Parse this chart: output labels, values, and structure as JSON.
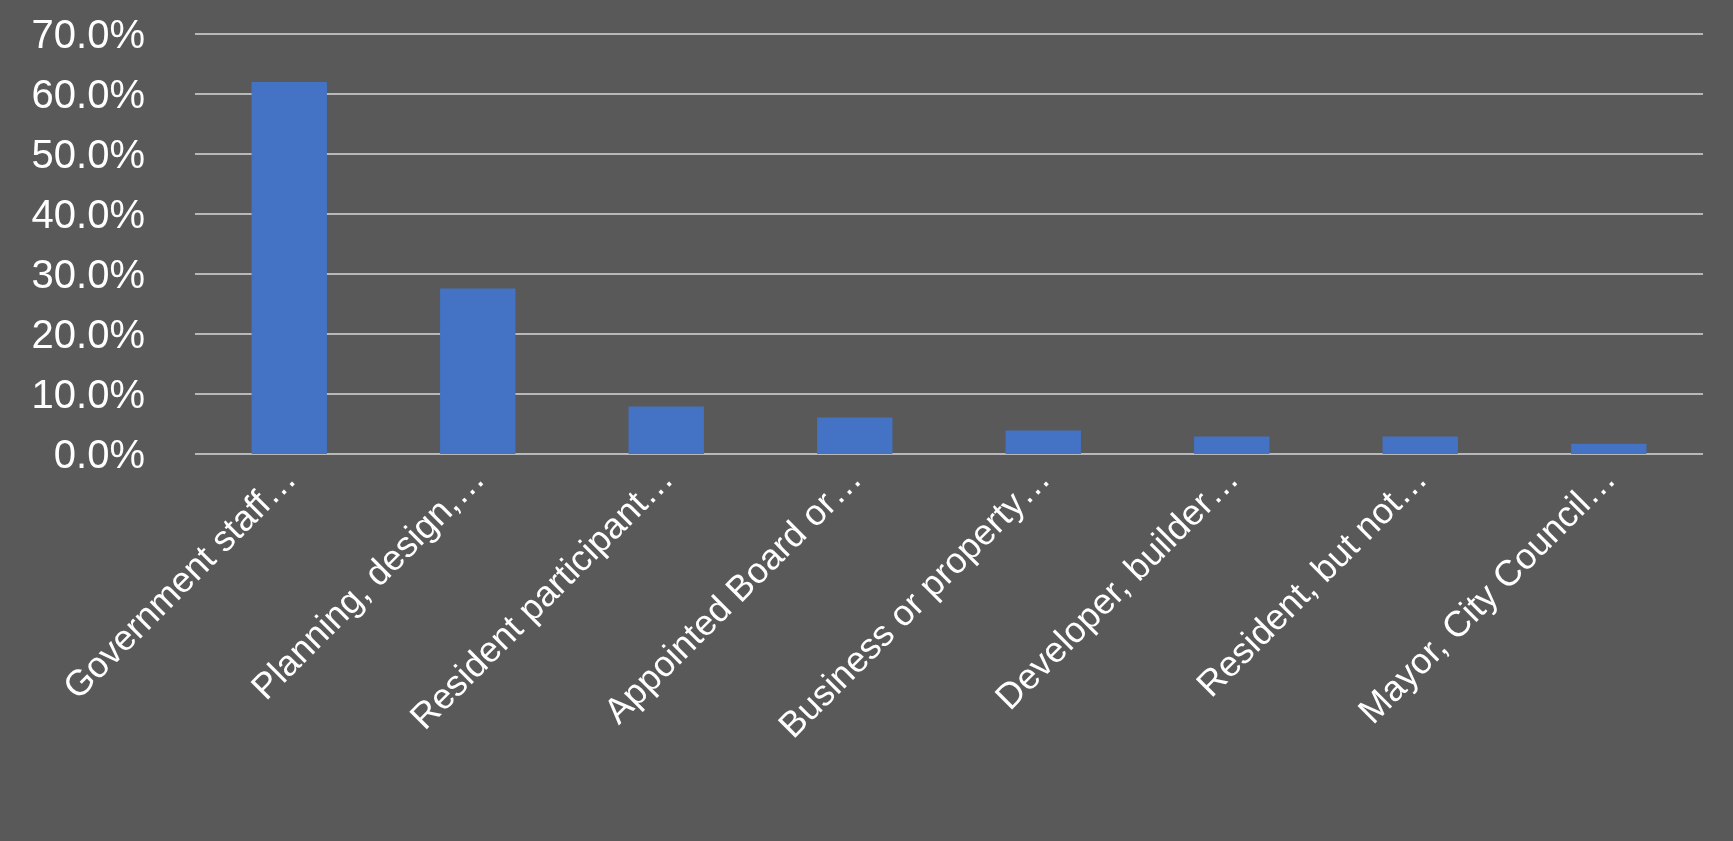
{
  "chart_data": {
    "type": "bar",
    "categories": [
      "Government staff…",
      "Planning, design,…",
      "Resident participant…",
      "Appointed Board or…",
      "Business or property…",
      "Developer, builder…",
      "Resident, but not…",
      "Mayor, City Council…"
    ],
    "values": [
      62.0,
      27.6,
      7.9,
      6.1,
      3.9,
      2.9,
      2.9,
      1.7
    ],
    "color": "#4472c4",
    "ylim": [
      0,
      70
    ],
    "yticks": [
      {
        "value": 0,
        "label": "0.0%"
      },
      {
        "value": 10,
        "label": "10.0%"
      },
      {
        "value": 20,
        "label": "20.0%"
      },
      {
        "value": 30,
        "label": "30.0%"
      },
      {
        "value": 40,
        "label": "40.0%"
      },
      {
        "value": 50,
        "label": "50.0%"
      },
      {
        "value": 60,
        "label": "60.0%"
      },
      {
        "value": 70,
        "label": "70.0%"
      }
    ],
    "grid": "y"
  }
}
